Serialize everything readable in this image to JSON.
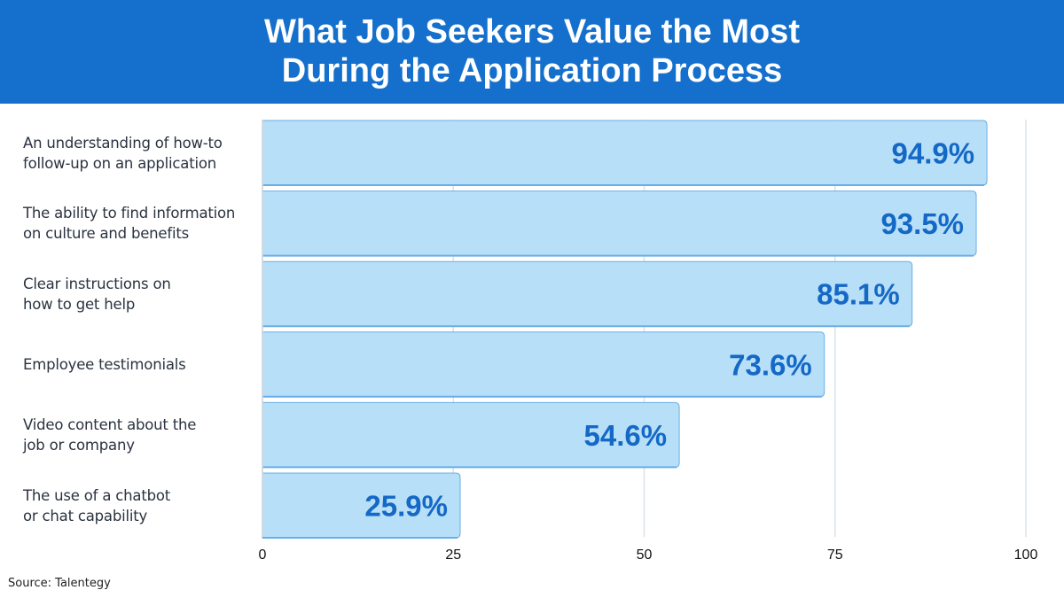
{
  "chart_data": {
    "type": "bar",
    "orientation": "horizontal",
    "title": [
      "What Job Seekers Value the Most",
      "During the Application Process"
    ],
    "categories": [
      [
        "An understanding of how-to",
        "follow-up on an application"
      ],
      [
        "The ability to find information",
        "on culture and benefits"
      ],
      [
        "Clear instructions on",
        "how to get help"
      ],
      [
        "Employee testimonials"
      ],
      [
        "Video content about the",
        "job or company"
      ],
      [
        "The use of a chatbot",
        "or chat capability"
      ]
    ],
    "values": [
      94.9,
      93.5,
      85.1,
      73.6,
      54.6,
      25.9
    ],
    "value_labels": [
      "94.9%",
      "93.5%",
      "85.1%",
      "73.6%",
      "54.6%",
      "25.9%"
    ],
    "xlim": [
      0,
      100
    ],
    "xticks": [
      0,
      25,
      50,
      75,
      100
    ],
    "grid": "vertical",
    "colors": {
      "header": "#1470CC",
      "bar": "#B8DFF8",
      "bar_edge": "#6AAEE6",
      "value_text": "#1468C6",
      "grid": "#D9E2EA"
    }
  },
  "source": "Source: Talentegy"
}
